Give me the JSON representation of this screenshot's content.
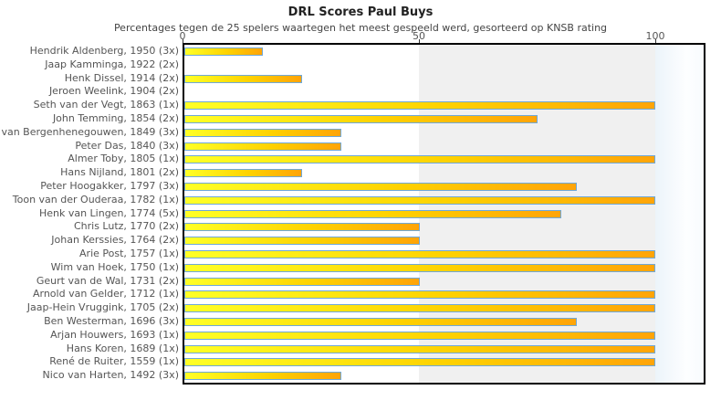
{
  "title": "DRL Scores Paul Buys",
  "subtitle": "Percentages tegen de 25 spelers waartegen het meest gespeeld werd, gesorteerd op KNSB rating",
  "chart_data": {
    "type": "bar",
    "orientation": "horizontal",
    "title": "DRL Scores Paul Buys",
    "subtitle": "Percentages tegen de 25 spelers waartegen het meest gespeeld werd, gesorteerd op KNSB rating",
    "xlabel": "",
    "ylabel": "",
    "xlim": [
      0,
      110
    ],
    "x_ticks": [
      0,
      50,
      100
    ],
    "axis_position": "top",
    "grid": false,
    "legend": false,
    "categories": [
      "Hendrik Aldenberg, 1950 (3x)",
      "Jaap Kamminga, 1922 (2x)",
      "Henk Dissel, 1914 (2x)",
      "Jeroen Weelink, 1904 (2x)",
      "Seth van der Vegt, 1863 (1x)",
      "John Temming, 1854 (2x)",
      "van Bergenhenegouwen, 1849 (3x)",
      "Peter Das, 1840 (3x)",
      "Almer Toby, 1805 (1x)",
      "Hans Nijland, 1801 (2x)",
      "Peter Hoogakker, 1797 (3x)",
      "Toon van der Ouderaa, 1782 (1x)",
      "Henk van Lingen, 1774 (5x)",
      "Chris Lutz, 1770 (2x)",
      "Johan Kerssies, 1764 (2x)",
      "Arie Post, 1757 (1x)",
      "Wim van Hoek, 1750 (1x)",
      "Geurt van de Wal, 1731 (2x)",
      "Arnold van Gelder, 1712 (1x)",
      "Jaap-Hein Vruggink, 1705 (2x)",
      "Ben Westerman, 1696 (3x)",
      "Arjan Houwers, 1693 (1x)",
      "Hans Koren, 1689 (1x)",
      "René de Ruiter, 1559 (1x)",
      "Nico van Harten, 1492 (3x)"
    ],
    "values": [
      16.7,
      0,
      25,
      0,
      100,
      75,
      33.3,
      33.3,
      100,
      25,
      83.3,
      100,
      80,
      50,
      50,
      100,
      100,
      50,
      100,
      100,
      83.3,
      100,
      100,
      100,
      33.3
    ],
    "colors": {
      "bar_gradient_start": "#ffff26",
      "bar_gradient_end": "#ffa408",
      "bar_border": "#6fa8d8",
      "band_50_100": "#f0f0f0",
      "band_over_100": "#ecf4fa",
      "plot_border": "#000000",
      "label_text": "#555555"
    }
  }
}
